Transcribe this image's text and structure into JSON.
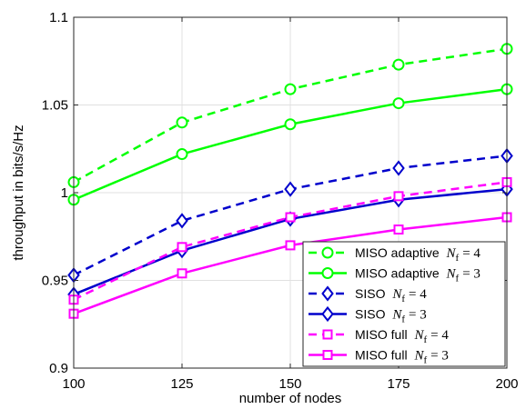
{
  "chart_data": {
    "type": "line",
    "xlabel": "number of nodes",
    "ylabel": "throughput in bits/s/Hz",
    "xlim": [
      100,
      200
    ],
    "ylim": [
      0.9,
      1.1
    ],
    "x_ticks": [
      "100",
      "125",
      "150",
      "175",
      "200"
    ],
    "y_ticks": [
      "0.9",
      "0.95",
      "1",
      "1.05",
      "1.1"
    ],
    "x_tick_values": [
      100,
      125,
      150,
      175,
      200
    ],
    "y_tick_values": [
      0.9,
      0.95,
      1.0,
      1.05,
      1.1
    ],
    "grid": true,
    "legend_position": "bottom-right",
    "x": [
      100,
      125,
      150,
      175,
      200
    ],
    "series": [
      {
        "name": "MISO adaptive N_f = 4",
        "legend_prefix": "MISO adaptive",
        "legend_math": "N_f = 4",
        "color": "#00ff00",
        "dash": "dashed",
        "marker": "circle",
        "values": [
          1.006,
          1.04,
          1.059,
          1.073,
          1.082
        ]
      },
      {
        "name": "MISO adaptive N_f = 3",
        "legend_prefix": "MISO adaptive",
        "legend_math": "N_f = 3",
        "color": "#00ff00",
        "dash": "solid",
        "marker": "circle",
        "values": [
          0.996,
          1.022,
          1.039,
          1.051,
          1.059
        ]
      },
      {
        "name": "SISO N_f = 4",
        "legend_prefix": "SISO",
        "legend_math": "N_f = 4",
        "color": "#0000cc",
        "dash": "dashed",
        "marker": "diamond",
        "values": [
          0.953,
          0.984,
          1.002,
          1.014,
          1.021
        ]
      },
      {
        "name": "SISO N_f = 3",
        "legend_prefix": "SISO",
        "legend_math": "N_f = 3",
        "color": "#0000cc",
        "dash": "solid",
        "marker": "diamond",
        "values": [
          0.942,
          0.967,
          0.985,
          0.996,
          1.002
        ]
      },
      {
        "name": "MISO full N_f = 4",
        "legend_prefix": "MISO full",
        "legend_math": "N_f = 4",
        "color": "#ff00ff",
        "dash": "dashed",
        "marker": "square",
        "values": [
          0.939,
          0.969,
          0.986,
          0.998,
          1.006
        ]
      },
      {
        "name": "MISO full N_f = 3",
        "legend_prefix": "MISO full",
        "legend_math": "N_f = 3",
        "color": "#ff00ff",
        "dash": "solid",
        "marker": "square",
        "values": [
          0.931,
          0.954,
          0.97,
          0.979,
          0.986
        ]
      }
    ]
  }
}
